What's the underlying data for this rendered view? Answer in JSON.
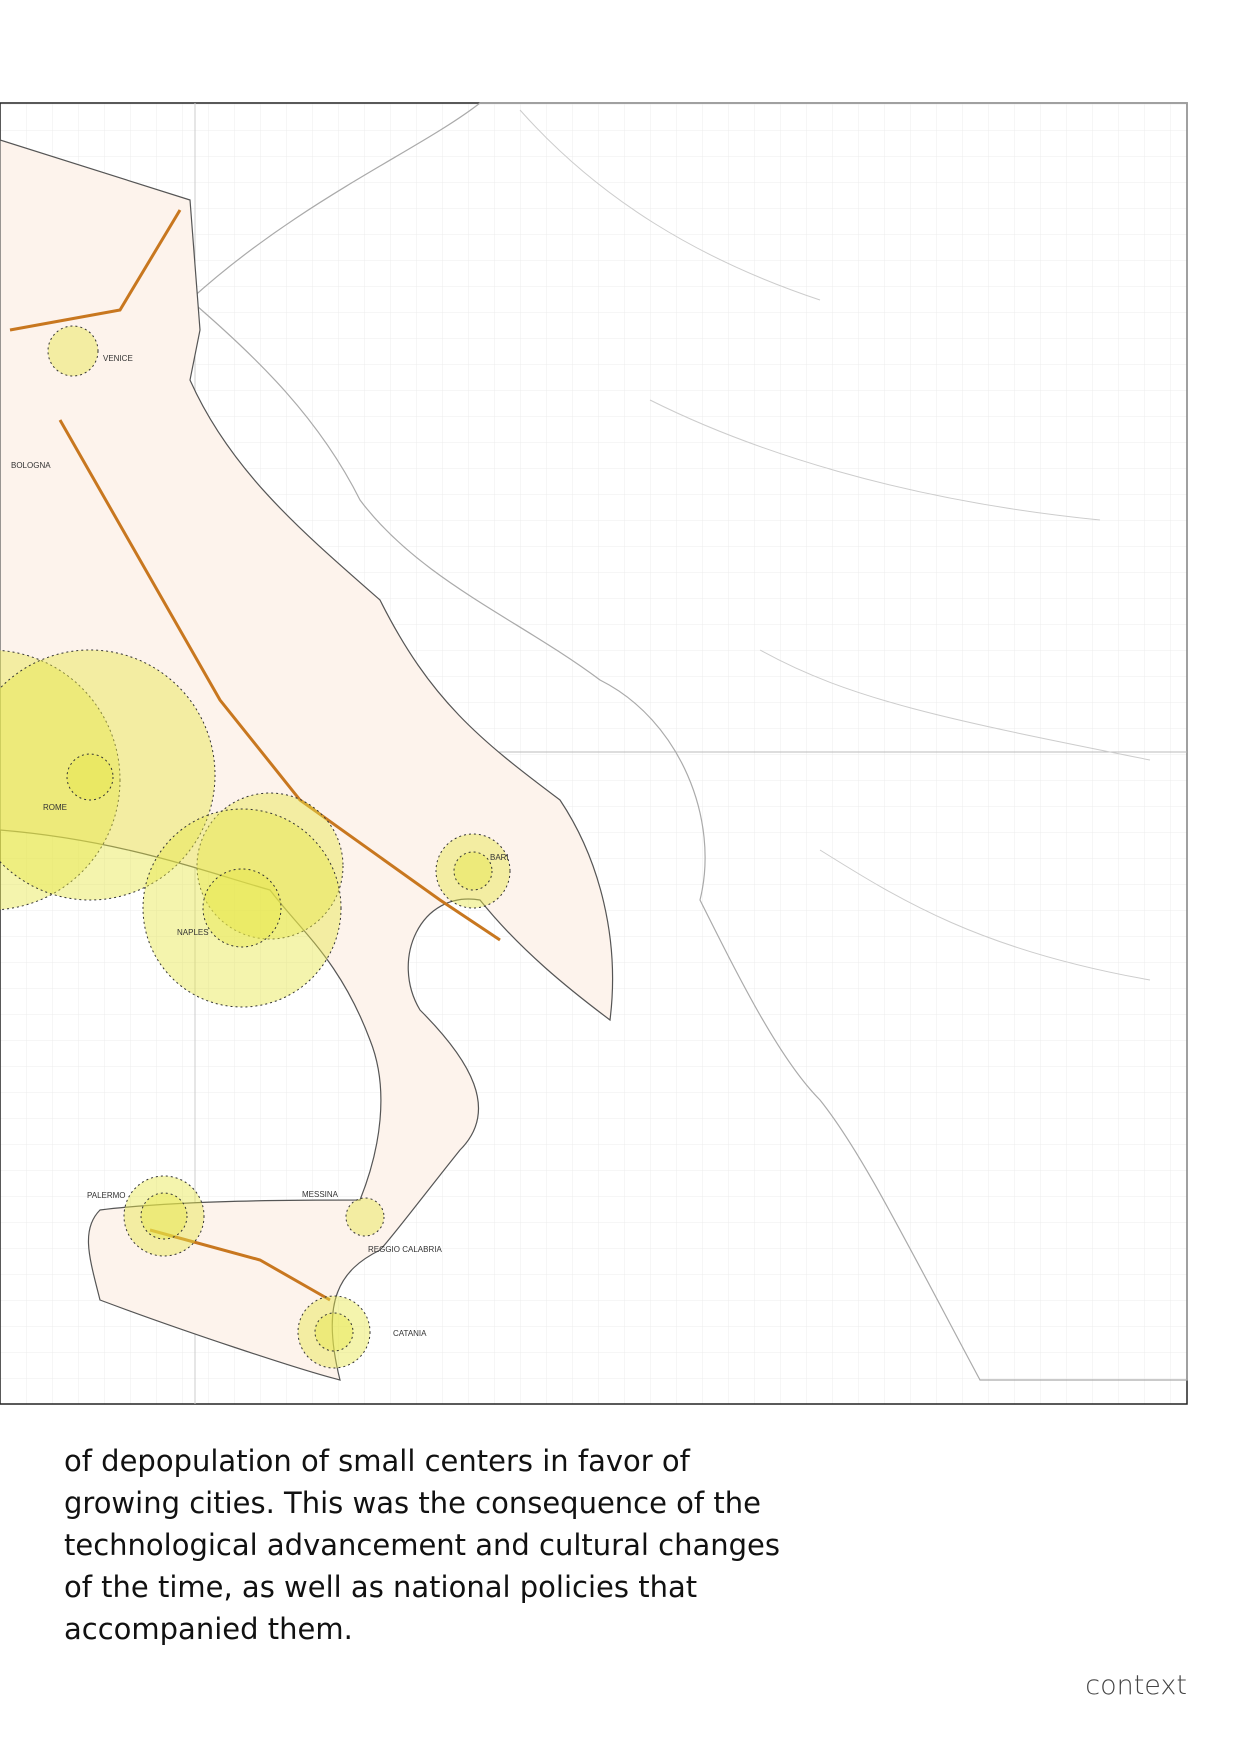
{
  "map": {
    "cities": [
      "VENICE",
      "BOLOGNA",
      "ROME",
      "NAPLES",
      "BARI",
      "PALERMO",
      "MESSINA",
      "REGGIO CALABRIA",
      "CATANIA"
    ]
  },
  "body": {
    "lines": [
      "of depopulation of small centers in favor of",
      "growing cities. This was the consequence of the",
      "technological advancement and cultural changes",
      "of the time, as well as national policies that",
      "accompanied them."
    ]
  },
  "footer": {
    "label": "context"
  }
}
